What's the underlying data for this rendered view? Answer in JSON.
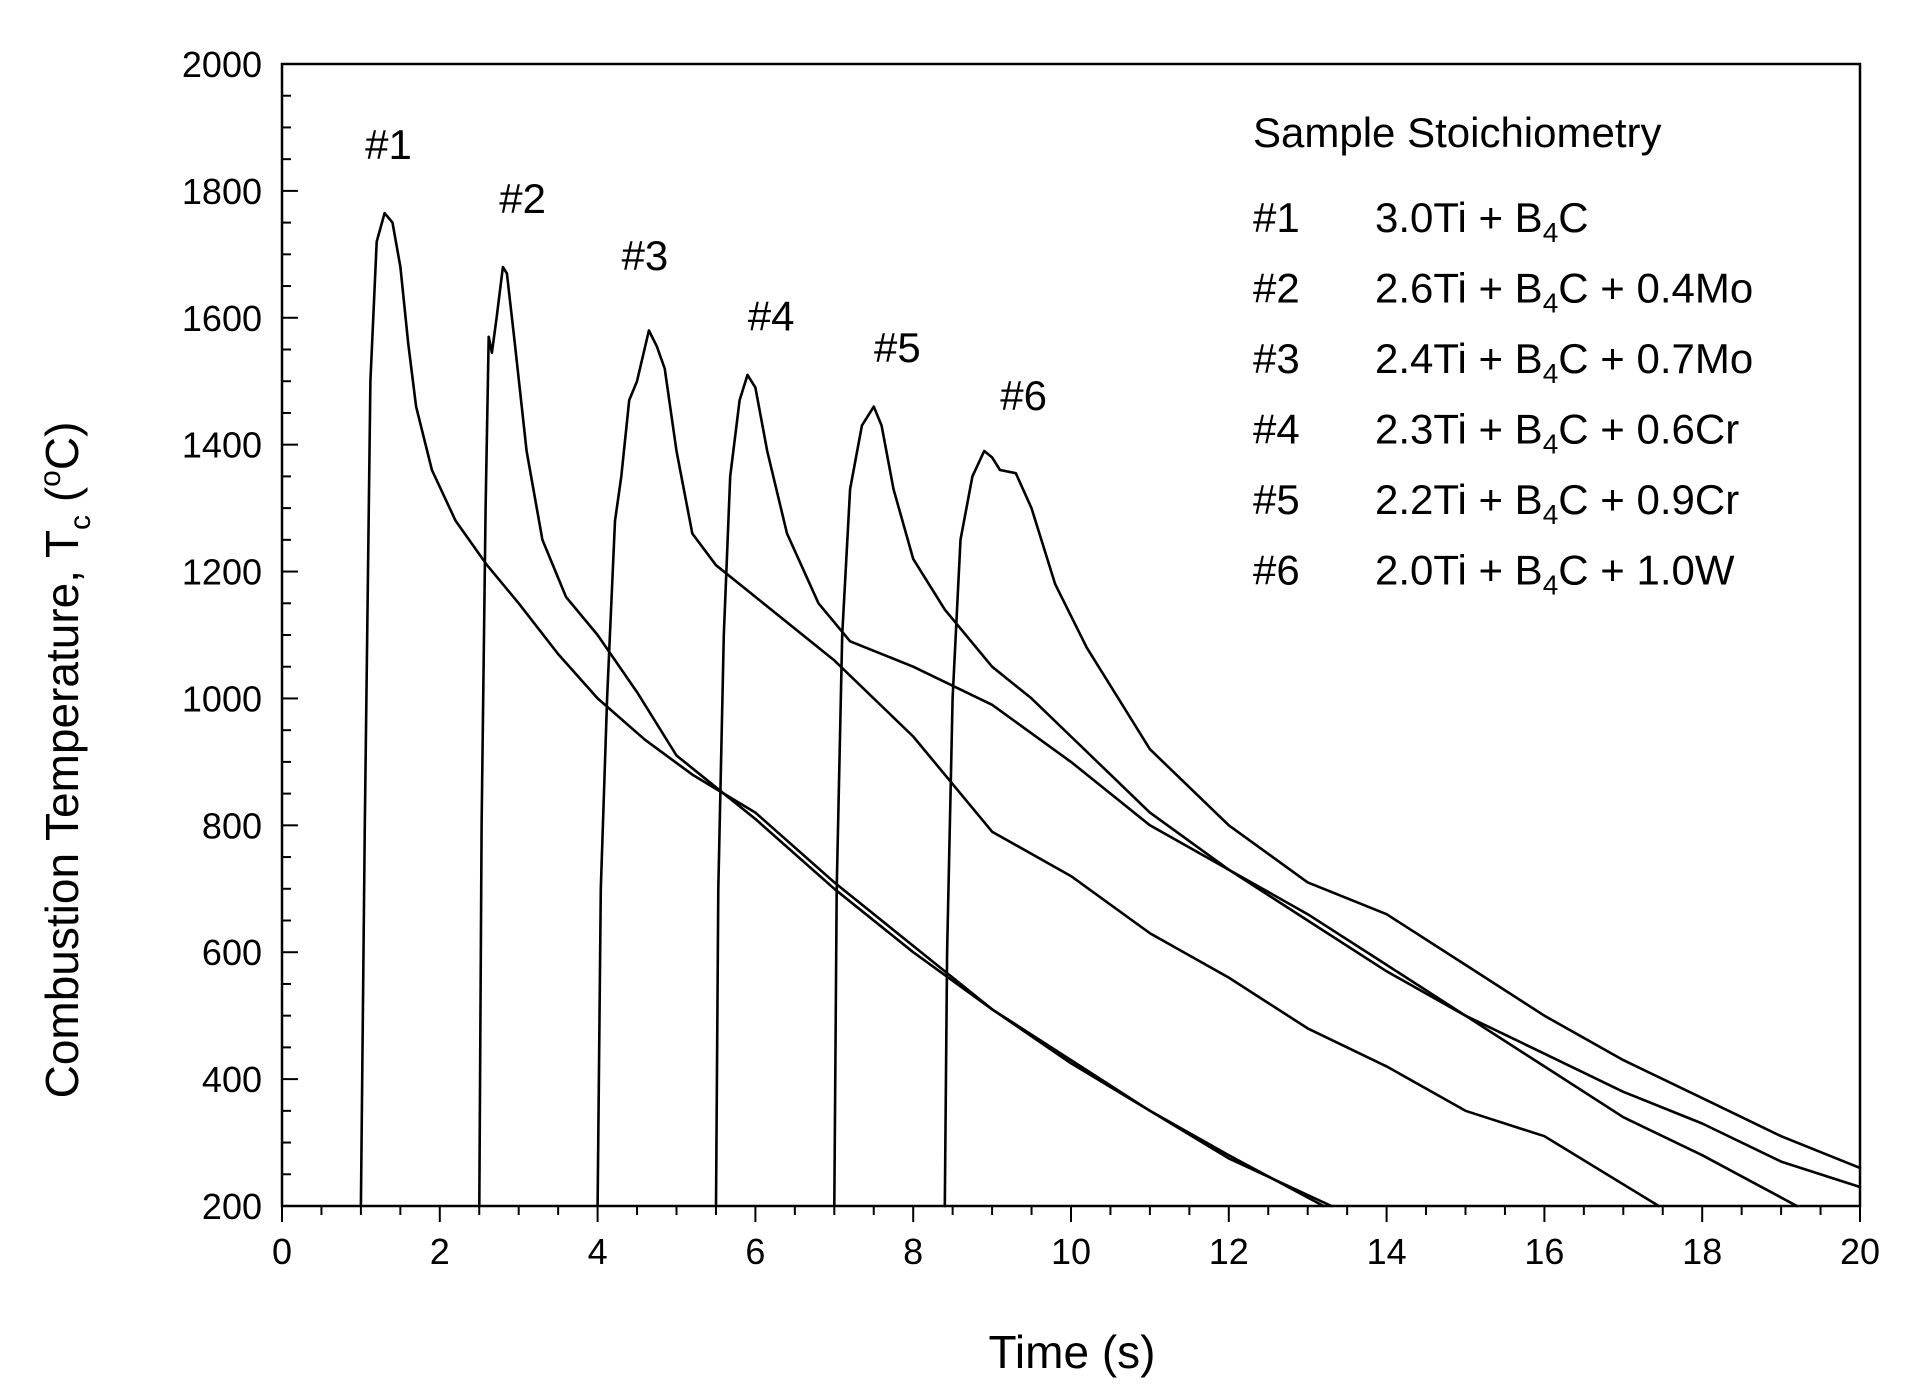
{
  "chart_data": {
    "type": "line",
    "title": "",
    "xlabel": "Time (s)",
    "ylabel_main": "Combustion Temperature, T",
    "ylabel_sub": "c",
    "ylabel_open": " (",
    "ylabel_sup": "o",
    "ylabel_close": "C)",
    "xlim": [
      0,
      20
    ],
    "ylim": [
      200,
      2000
    ],
    "xticks": [
      0,
      2,
      4,
      6,
      8,
      10,
      12,
      14,
      16,
      18,
      20
    ],
    "yticks": [
      200,
      400,
      600,
      800,
      1000,
      1200,
      1400,
      1600,
      1800,
      2000
    ],
    "grid": false,
    "legend": {
      "title": "Sample Stoichiometry",
      "placement": "top-right",
      "entries": [
        {
          "id": "#1",
          "pre": "3.0Ti + B",
          "sub": "4",
          "post": "C"
        },
        {
          "id": "#2",
          "pre": "2.6Ti + B",
          "sub": "4",
          "post": "C + 0.4Mo"
        },
        {
          "id": "#3",
          "pre": "2.4Ti + B",
          "sub": "4",
          "post": "C + 0.7Mo"
        },
        {
          "id": "#4",
          "pre": "2.3Ti + B",
          "sub": "4",
          "post": "C + 0.6Cr"
        },
        {
          "id": "#5",
          "pre": "2.2Ti + B",
          "sub": "4",
          "post": "C + 0.9Cr"
        },
        {
          "id": "#6",
          "pre": "2.0Ti + B",
          "sub": "4",
          "post": "C + 1.0W"
        }
      ]
    },
    "series": [
      {
        "name": "#1",
        "label_at": [
          1.35,
          1850
        ],
        "points": [
          [
            1.0,
            200
          ],
          [
            1.0,
            200
          ],
          [
            1.05,
            800
          ],
          [
            1.12,
            1500
          ],
          [
            1.2,
            1720
          ],
          [
            1.3,
            1765
          ],
          [
            1.4,
            1750
          ],
          [
            1.5,
            1680
          ],
          [
            1.6,
            1560
          ],
          [
            1.7,
            1460
          ],
          [
            1.9,
            1360
          ],
          [
            2.2,
            1280
          ],
          [
            2.6,
            1210
          ],
          [
            3.0,
            1150
          ],
          [
            3.5,
            1070
          ],
          [
            4.0,
            1000
          ],
          [
            4.6,
            935
          ],
          [
            5.2,
            880
          ],
          [
            6.0,
            820
          ],
          [
            7.0,
            710
          ],
          [
            8.0,
            610
          ],
          [
            9.0,
            510
          ],
          [
            10.0,
            430
          ],
          [
            11.0,
            350
          ],
          [
            12.0,
            280
          ],
          [
            13.2,
            200
          ]
        ]
      },
      {
        "name": "#2",
        "label_at": [
          3.05,
          1765
        ],
        "points": [
          [
            2.5,
            200
          ],
          [
            2.53,
            800
          ],
          [
            2.58,
            1300
          ],
          [
            2.62,
            1570
          ],
          [
            2.66,
            1545
          ],
          [
            2.72,
            1600
          ],
          [
            2.8,
            1680
          ],
          [
            2.85,
            1670
          ],
          [
            2.95,
            1560
          ],
          [
            3.1,
            1390
          ],
          [
            3.3,
            1250
          ],
          [
            3.6,
            1160
          ],
          [
            4.0,
            1100
          ],
          [
            4.5,
            1010
          ],
          [
            5.0,
            910
          ],
          [
            5.5,
            860
          ],
          [
            6.0,
            810
          ],
          [
            7.0,
            700
          ],
          [
            8.0,
            600
          ],
          [
            9.0,
            510
          ],
          [
            10.0,
            425
          ],
          [
            11.0,
            350
          ],
          [
            12.0,
            275
          ],
          [
            13.3,
            200
          ]
        ]
      },
      {
        "name": "#3",
        "label_at": [
          4.6,
          1675
        ],
        "points": [
          [
            4.0,
            200
          ],
          [
            4.04,
            700
          ],
          [
            4.12,
            1000
          ],
          [
            4.22,
            1280
          ],
          [
            4.3,
            1350
          ],
          [
            4.4,
            1470
          ],
          [
            4.5,
            1500
          ],
          [
            4.65,
            1580
          ],
          [
            4.75,
            1555
          ],
          [
            4.85,
            1520
          ],
          [
            5.0,
            1390
          ],
          [
            5.2,
            1260
          ],
          [
            5.5,
            1210
          ],
          [
            6.0,
            1160
          ],
          [
            7.0,
            1060
          ],
          [
            8.0,
            940
          ],
          [
            9.0,
            790
          ],
          [
            10.0,
            720
          ],
          [
            11.0,
            630
          ],
          [
            12.0,
            560
          ],
          [
            13.0,
            480
          ],
          [
            14.0,
            420
          ],
          [
            15.0,
            350
          ],
          [
            16.0,
            310
          ],
          [
            17.45,
            200
          ]
        ]
      },
      {
        "name": "#4",
        "label_at": [
          6.2,
          1580
        ],
        "points": [
          [
            5.5,
            200
          ],
          [
            5.53,
            700
          ],
          [
            5.6,
            1100
          ],
          [
            5.68,
            1350
          ],
          [
            5.8,
            1470
          ],
          [
            5.9,
            1510
          ],
          [
            6.0,
            1490
          ],
          [
            6.15,
            1390
          ],
          [
            6.4,
            1260
          ],
          [
            6.8,
            1150
          ],
          [
            7.2,
            1090
          ],
          [
            8.0,
            1050
          ],
          [
            9.0,
            990
          ],
          [
            10.0,
            900
          ],
          [
            11.0,
            800
          ],
          [
            12.0,
            730
          ],
          [
            13.0,
            660
          ],
          [
            14.0,
            580
          ],
          [
            15.0,
            500
          ],
          [
            16.0,
            420
          ],
          [
            17.0,
            340
          ],
          [
            18.0,
            280
          ],
          [
            19.2,
            200
          ]
        ]
      },
      {
        "name": "#5",
        "label_at": [
          7.8,
          1530
        ],
        "points": [
          [
            7.0,
            200
          ],
          [
            7.03,
            700
          ],
          [
            7.1,
            1100
          ],
          [
            7.2,
            1330
          ],
          [
            7.35,
            1430
          ],
          [
            7.5,
            1460
          ],
          [
            7.6,
            1430
          ],
          [
            7.75,
            1330
          ],
          [
            8.0,
            1220
          ],
          [
            8.4,
            1140
          ],
          [
            9.0,
            1050
          ],
          [
            9.5,
            1000
          ],
          [
            10.0,
            940
          ],
          [
            10.5,
            880
          ],
          [
            11.0,
            820
          ],
          [
            12.0,
            730
          ],
          [
            13.0,
            650
          ],
          [
            14.0,
            570
          ],
          [
            15.0,
            500
          ],
          [
            16.0,
            440
          ],
          [
            17.0,
            380
          ],
          [
            18.0,
            330
          ],
          [
            19.0,
            270
          ],
          [
            20.0,
            230
          ]
        ]
      },
      {
        "name": "#6",
        "label_at": [
          9.4,
          1455
        ],
        "points": [
          [
            8.4,
            200
          ],
          [
            8.43,
            600
          ],
          [
            8.5,
            1000
          ],
          [
            8.6,
            1250
          ],
          [
            8.75,
            1350
          ],
          [
            8.9,
            1390
          ],
          [
            9.0,
            1380
          ],
          [
            9.1,
            1360
          ],
          [
            9.3,
            1355
          ],
          [
            9.5,
            1300
          ],
          [
            9.8,
            1180
          ],
          [
            10.2,
            1080
          ],
          [
            11.0,
            920
          ],
          [
            12.0,
            800
          ],
          [
            13.0,
            710
          ],
          [
            14.0,
            660
          ],
          [
            15.0,
            580
          ],
          [
            16.0,
            500
          ],
          [
            17.0,
            430
          ],
          [
            18.0,
            370
          ],
          [
            19.0,
            310
          ],
          [
            20.0,
            260
          ]
        ]
      }
    ]
  }
}
